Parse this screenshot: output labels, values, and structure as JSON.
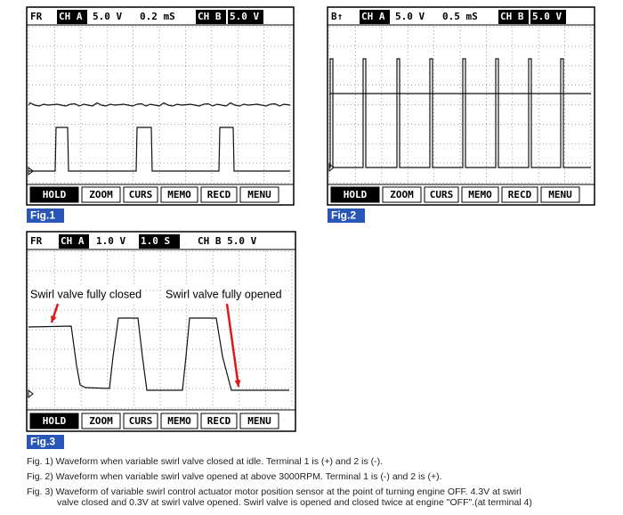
{
  "figures": [
    {
      "header": [
        "FR",
        "CH A",
        "5.0 V",
        "0.2 mS",
        "CH B",
        "5.0 V"
      ],
      "buttons": [
        "HOLD",
        "ZOOM",
        "CURS",
        "MEMO",
        "RECD",
        "MENU"
      ],
      "label": "Fig.1"
    },
    {
      "header": [
        "B↑",
        "CH A",
        "5.0 V",
        "0.5 mS",
        "CH B",
        "5.0 V"
      ],
      "buttons": [
        "HOLD",
        "ZOOM",
        "CURS",
        "MEMO",
        "RECD",
        "MENU"
      ],
      "label": "Fig.2"
    },
    {
      "header": [
        "FR",
        "CH A",
        "1.0 V",
        "1.0 S",
        "CH B 5.0 V"
      ],
      "buttons": [
        "HOLD",
        "ZOOM",
        "CURS",
        "MEMO",
        "RECD",
        "MENU"
      ],
      "label": "Fig.3",
      "annotations": [
        "Swirl valve fully closed",
        "Swirl valve fully opened"
      ]
    }
  ],
  "captions": [
    [
      "Fig. 1) Waveform when variable swirl valve closed at idle. Terminal 1 is (+) and 2 is (-)."
    ],
    [
      "Fig. 2)  Waveform when variable swirl valve opened at above 3000RPM. Terminal 1 is (-) and 2 is (+)."
    ],
    [
      "Fig. 3) Waveform of variable swirl control actuator motor position sensor at the point of turning engine OFF. 4.3V at swirl",
      "valve closed  and 0.3V at swirl valve opened. Swirl valve is opened and closed twice at engine \"OFF\".(at terminal 4)"
    ]
  ]
}
